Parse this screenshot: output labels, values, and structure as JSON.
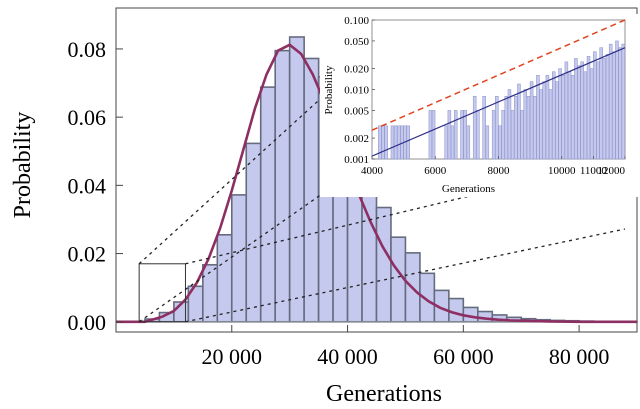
{
  "chart_data": [
    {
      "type": "bar",
      "title": "",
      "xlabel": "Generations",
      "ylabel": "Probability",
      "xlim": [
        0,
        90000
      ],
      "ylim": [
        -0.003,
        0.092
      ],
      "xticks": [
        20000,
        40000,
        60000,
        80000
      ],
      "xtick_labels": [
        "20 000",
        "40 000",
        "60 000",
        "80 000"
      ],
      "yticks": [
        0.0,
        0.02,
        0.04,
        0.06,
        0.08
      ],
      "ytick_labels": [
        "0.00",
        "0.02",
        "0.04",
        "0.06",
        "0.08"
      ],
      "bin_width": 2500,
      "bins": [
        {
          "x0": 5000,
          "value": 0.0008
        },
        {
          "x0": 7500,
          "value": 0.0027
        },
        {
          "x0": 10000,
          "value": 0.0058
        },
        {
          "x0": 12500,
          "value": 0.0104
        },
        {
          "x0": 15000,
          "value": 0.0167
        },
        {
          "x0": 17500,
          "value": 0.0255
        },
        {
          "x0": 20000,
          "value": 0.0372
        },
        {
          "x0": 22500,
          "value": 0.0523
        },
        {
          "x0": 25000,
          "value": 0.0688
        },
        {
          "x0": 27500,
          "value": 0.0795
        },
        {
          "x0": 30000,
          "value": 0.0835
        },
        {
          "x0": 32500,
          "value": 0.0772
        },
        {
          "x0": 35000,
          "value": 0.0718
        },
        {
          "x0": 37500,
          "value": 0.0663
        },
        {
          "x0": 40000,
          "value": 0.0535
        },
        {
          "x0": 42500,
          "value": 0.0428
        },
        {
          "x0": 45000,
          "value": 0.0335
        },
        {
          "x0": 47500,
          "value": 0.0248
        },
        {
          "x0": 50000,
          "value": 0.0202
        },
        {
          "x0": 52500,
          "value": 0.0142
        },
        {
          "x0": 55000,
          "value": 0.0092
        },
        {
          "x0": 57500,
          "value": 0.0068
        },
        {
          "x0": 60000,
          "value": 0.0042
        },
        {
          "x0": 62500,
          "value": 0.003
        },
        {
          "x0": 65000,
          "value": 0.002
        },
        {
          "x0": 67500,
          "value": 0.0013
        },
        {
          "x0": 70000,
          "value": 0.0009
        },
        {
          "x0": 72500,
          "value": 0.0006
        },
        {
          "x0": 75000,
          "value": 0.0004
        },
        {
          "x0": 77500,
          "value": 0.0003
        },
        {
          "x0": 80000,
          "value": 0.0002
        },
        {
          "x0": 82500,
          "value": 0.0001
        },
        {
          "x0": 85000,
          "value": 0.0001
        },
        {
          "x0": 87500,
          "value": 0.0001
        }
      ],
      "fit_curve": {
        "x": [
          0,
          5000,
          8000,
          10000,
          12000,
          14000,
          16000,
          18000,
          20000,
          22000,
          24000,
          26000,
          28000,
          30000,
          32000,
          34000,
          36000,
          38000,
          40000,
          42000,
          44000,
          46000,
          48000,
          50000,
          52000,
          54000,
          56000,
          58000,
          60000,
          62000,
          64000,
          66000,
          68000,
          70000,
          75000,
          80000,
          90000
        ],
        "y": [
          0.0,
          0.0,
          0.0015,
          0.0032,
          0.0065,
          0.0115,
          0.0185,
          0.0275,
          0.0385,
          0.0505,
          0.0625,
          0.0725,
          0.0795,
          0.0812,
          0.0785,
          0.0725,
          0.0645,
          0.0555,
          0.0462,
          0.0372,
          0.0292,
          0.0222,
          0.0165,
          0.012,
          0.0086,
          0.006,
          0.0041,
          0.0028,
          0.0019,
          0.0013,
          0.0009,
          0.0006,
          0.0004,
          0.0003,
          0.0001,
          0.0,
          0.0
        ]
      },
      "colors": {
        "bar_fill": "#c5c9ee",
        "bar_edge": "#666c80",
        "fit_line": "#8e2f63"
      },
      "zoom_box": {
        "x0": 4000,
        "x1": 12000,
        "y0": 0.0,
        "y1": 0.017
      }
    },
    {
      "type": "bar",
      "title": "",
      "xlabel": "Generations",
      "ylabel": "Probability",
      "scale_y": "log",
      "xlim": [
        4000,
        12000
      ],
      "ylim": [
        0.001,
        0.1
      ],
      "xticks": [
        4000,
        6000,
        8000,
        10000,
        11000,
        12000
      ],
      "xtick_labels": [
        "4000",
        "6000",
        "8000",
        "10000",
        "11000",
        "12000"
      ],
      "yticks": [
        0.001,
        0.002,
        0.005,
        0.01,
        0.02,
        0.05,
        0.1
      ],
      "ytick_labels": [
        "0.001",
        "0.002",
        "0.005",
        "0.010",
        "0.020",
        "0.050",
        "0.100"
      ],
      "bin_width": 100,
      "bins": [
        {
          "x0": 4200,
          "value": 0.003
        },
        {
          "x0": 4300,
          "value": 0.003
        },
        {
          "x0": 4400,
          "value": 0.003
        },
        {
          "x0": 4600,
          "value": 0.003
        },
        {
          "x0": 4700,
          "value": 0.003
        },
        {
          "x0": 4800,
          "value": 0.003
        },
        {
          "x0": 4900,
          "value": 0.003
        },
        {
          "x0": 5000,
          "value": 0.003
        },
        {
          "x0": 5100,
          "value": 0.003
        },
        {
          "x0": 5800,
          "value": 0.005
        },
        {
          "x0": 5900,
          "value": 0.005
        },
        {
          "x0": 6300,
          "value": 0.003
        },
        {
          "x0": 6400,
          "value": 0.005
        },
        {
          "x0": 6500,
          "value": 0.003
        },
        {
          "x0": 6600,
          "value": 0.005
        },
        {
          "x0": 6800,
          "value": 0.005
        },
        {
          "x0": 6900,
          "value": 0.005
        },
        {
          "x0": 7000,
          "value": 0.003
        },
        {
          "x0": 7200,
          "value": 0.008
        },
        {
          "x0": 7300,
          "value": 0.005
        },
        {
          "x0": 7500,
          "value": 0.008
        },
        {
          "x0": 7600,
          "value": 0.003
        },
        {
          "x0": 7800,
          "value": 0.005
        },
        {
          "x0": 7900,
          "value": 0.008
        },
        {
          "x0": 8000,
          "value": 0.003
        },
        {
          "x0": 8100,
          "value": 0.005
        },
        {
          "x0": 8200,
          "value": 0.008
        },
        {
          "x0": 8300,
          "value": 0.01
        },
        {
          "x0": 8400,
          "value": 0.005
        },
        {
          "x0": 8500,
          "value": 0.008
        },
        {
          "x0": 8600,
          "value": 0.012
        },
        {
          "x0": 8700,
          "value": 0.005
        },
        {
          "x0": 8800,
          "value": 0.01
        },
        {
          "x0": 8900,
          "value": 0.008
        },
        {
          "x0": 9000,
          "value": 0.013
        },
        {
          "x0": 9100,
          "value": 0.008
        },
        {
          "x0": 9200,
          "value": 0.016
        },
        {
          "x0": 9300,
          "value": 0.01
        },
        {
          "x0": 9400,
          "value": 0.013
        },
        {
          "x0": 9500,
          "value": 0.016
        },
        {
          "x0": 9600,
          "value": 0.01
        },
        {
          "x0": 9700,
          "value": 0.018
        },
        {
          "x0": 9800,
          "value": 0.013
        },
        {
          "x0": 9900,
          "value": 0.02
        },
        {
          "x0": 10000,
          "value": 0.016
        },
        {
          "x0": 10100,
          "value": 0.025
        },
        {
          "x0": 10200,
          "value": 0.018
        },
        {
          "x0": 10300,
          "value": 0.016
        },
        {
          "x0": 10400,
          "value": 0.028
        },
        {
          "x0": 10500,
          "value": 0.022
        },
        {
          "x0": 10600,
          "value": 0.025
        },
        {
          "x0": 10700,
          "value": 0.018
        },
        {
          "x0": 10800,
          "value": 0.03
        },
        {
          "x0": 10900,
          "value": 0.02
        },
        {
          "x0": 11000,
          "value": 0.035
        },
        {
          "x0": 11100,
          "value": 0.025
        },
        {
          "x0": 11200,
          "value": 0.04
        },
        {
          "x0": 11300,
          "value": 0.028
        },
        {
          "x0": 11400,
          "value": 0.032
        },
        {
          "x0": 11500,
          "value": 0.045
        },
        {
          "x0": 11600,
          "value": 0.035
        },
        {
          "x0": 11700,
          "value": 0.05
        },
        {
          "x0": 11800,
          "value": 0.04
        },
        {
          "x0": 11900,
          "value": 0.045
        }
      ],
      "fit_line": {
        "x": [
          4000,
          12000
        ],
        "y": [
          0.0011,
          0.04
        ]
      },
      "bound_line": {
        "x": [
          4000,
          12000
        ],
        "y": [
          0.0026,
          0.1
        ]
      },
      "colors": {
        "bar_fill": "#c5c9ee",
        "bar_edge": "#8a90c8",
        "fit_line": "#2e2f86",
        "bound_line": "#e0441f"
      }
    }
  ]
}
